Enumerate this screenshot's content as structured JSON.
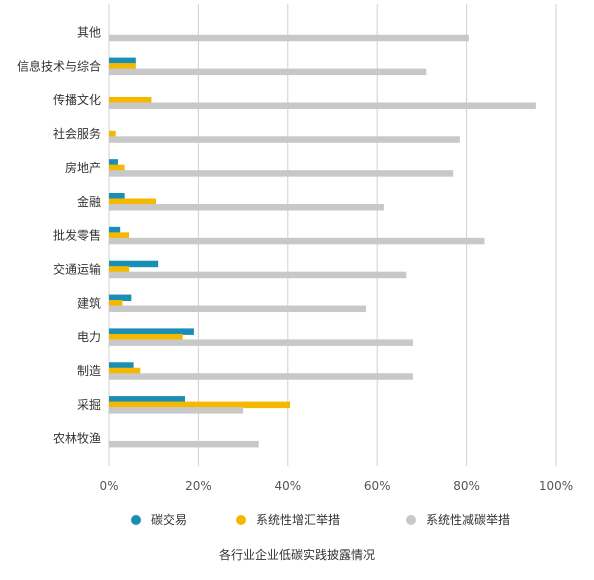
{
  "chart_data": {
    "type": "bar",
    "orientation": "horizontal",
    "title": "各行业企业低碳实践披露情况",
    "categories": [
      "其他",
      "信息技术与综合",
      "传播文化",
      "社会服务",
      "房地产",
      "金融",
      "批发零售",
      "交通运输",
      "建筑",
      "电力",
      "制造",
      "采掘",
      "农林牧渔"
    ],
    "series": [
      {
        "name": "碳交易",
        "color": "#1a8fb5",
        "values": [
          0,
          6,
          0,
          0,
          2,
          3.5,
          2.5,
          11,
          5,
          19,
          5.5,
          17,
          0
        ]
      },
      {
        "name": "系统性增汇举措",
        "color": "#f5b800",
        "values": [
          0,
          6,
          9.5,
          1.5,
          3.5,
          10.5,
          4.5,
          4.5,
          3,
          16.5,
          7,
          40.5,
          0
        ]
      },
      {
        "name": "系统性减碳举措",
        "color": "#c8c8c8",
        "values": [
          80.5,
          71,
          95.5,
          78.5,
          77,
          61.5,
          84,
          66.5,
          57.5,
          68,
          68,
          30,
          33.5
        ]
      }
    ],
    "xlim": [
      0,
      100
    ],
    "xticks": [
      "0%",
      "20%",
      "40%",
      "60%",
      "80%",
      "100%"
    ],
    "grid": true,
    "legend_position": "bottom"
  }
}
